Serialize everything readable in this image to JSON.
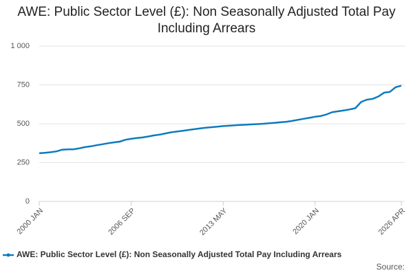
{
  "chart_data": {
    "type": "line",
    "title": "AWE: Public Sector Level (£): Non Seasonally Adjusted Total Pay Including Arrears",
    "source": "Source:",
    "categories": [
      "2000 JAN",
      null,
      null,
      null,
      null,
      null,
      null,
      null,
      null,
      null,
      null,
      null,
      null,
      null,
      null,
      null,
      "2006 SEP",
      null,
      null,
      null,
      null,
      null,
      null,
      null,
      null,
      null,
      null,
      null,
      null,
      null,
      null,
      null,
      "2013 MAY",
      null,
      null,
      null,
      null,
      null,
      null,
      null,
      null,
      null,
      null,
      null,
      null,
      null,
      null,
      null,
      "2020 JAN",
      null,
      null,
      null,
      null,
      null,
      null,
      null,
      null,
      null,
      null,
      null,
      null,
      null,
      null,
      "2026 APR"
    ],
    "series": [
      {
        "name": "AWE: Public Sector Level (£): Non Seasonally Adjusted Total Pay Including Arrears",
        "color": "#0b7bbd",
        "values": [
          310,
          313,
          317,
          322,
          333,
          335,
          336,
          342,
          350,
          355,
          362,
          368,
          375,
          380,
          385,
          397,
          403,
          408,
          412,
          418,
          425,
          430,
          438,
          445,
          450,
          455,
          460,
          465,
          470,
          475,
          478,
          481,
          485,
          487,
          490,
          492,
          494,
          496,
          498,
          500,
          503,
          506,
          510,
          513,
          518,
          525,
          532,
          538,
          545,
          550,
          560,
          575,
          580,
          586,
          592,
          600,
          640,
          655,
          660,
          675,
          700,
          705,
          735,
          745
        ]
      }
    ],
    "ylim": [
      0,
      1000
    ],
    "yticks": [
      0,
      250,
      500,
      750,
      {
        "value": 1000,
        "label": "1 000"
      }
    ],
    "grid": true
  }
}
